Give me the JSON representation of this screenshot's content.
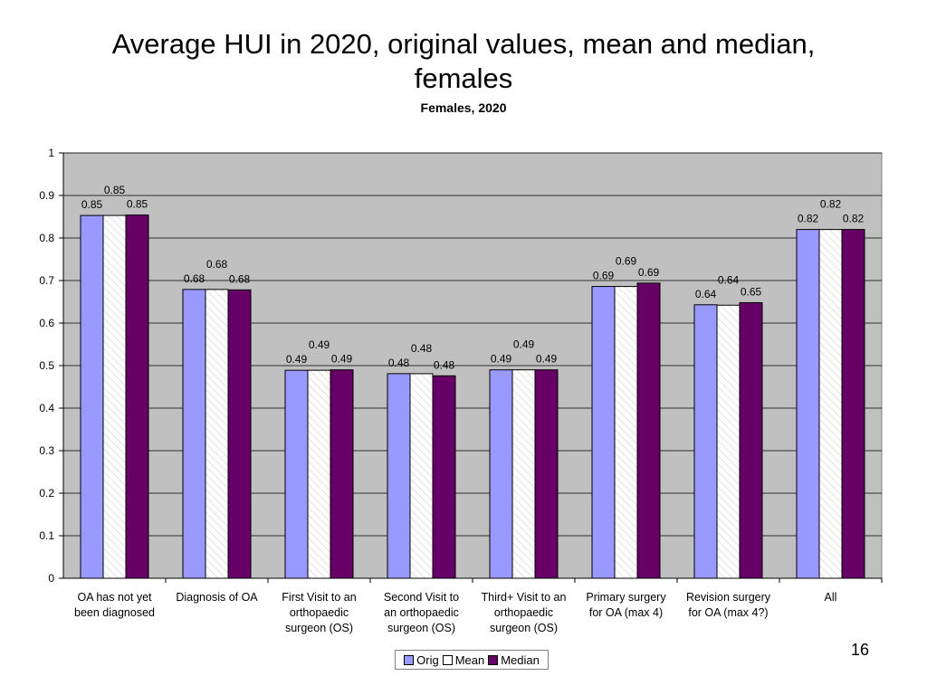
{
  "slide": {
    "title_line1": "Average HUI in 2020, original values, mean and median,",
    "title_line2": "females",
    "page_number": "16"
  },
  "chart_data": {
    "type": "bar",
    "title": "Females, 2020",
    "xlabel": "",
    "ylabel": "",
    "ylim": [
      0,
      1
    ],
    "yticks": [
      0,
      0.1,
      0.2,
      0.3,
      0.4,
      0.5,
      0.6,
      0.7,
      0.8,
      0.9,
      1
    ],
    "ytick_labels": [
      "0",
      "0.1",
      "0.2",
      "0.3",
      "0.4",
      "0.5",
      "0.6",
      "0.7",
      "0.8",
      "0.9",
      "1"
    ],
    "grid": true,
    "plot_background": "#C0C0C0",
    "legend_position": "bottom",
    "categories": [
      [
        "OA has not yet",
        "been diagnosed"
      ],
      [
        "Diagnosis of OA"
      ],
      [
        "First Visit to an",
        "orthopaedic",
        "surgeon (OS)"
      ],
      [
        "Second Visit to",
        "an orthopaedic",
        "surgeon (OS)"
      ],
      [
        "Third+ Visit to an",
        "orthopaedic",
        "surgeon (OS)"
      ],
      [
        "Primary surgery",
        "for OA (max 4)"
      ],
      [
        "Revision surgery",
        "for OA (max 4?)"
      ],
      [
        "All"
      ]
    ],
    "series": [
      {
        "name": "Orig",
        "color": "#9999FF",
        "values": [
          0.853,
          0.679,
          0.489,
          0.481,
          0.49,
          0.686,
          0.643,
          0.82
        ],
        "labels": [
          "0.85",
          "0.68",
          "0.49",
          "0.48",
          "0.49",
          "0.69",
          "0.64",
          "0.82"
        ]
      },
      {
        "name": "Mean",
        "color": "#FFFFFF",
        "values": [
          0.853,
          0.679,
          0.489,
          0.481,
          0.49,
          0.686,
          0.642,
          0.82
        ],
        "labels": [
          "0.85",
          "0.68",
          "0.49",
          "0.48",
          "0.49",
          "0.69",
          "0.64",
          "0.82"
        ]
      },
      {
        "name": "Median",
        "color": "#660066",
        "values": [
          0.854,
          0.678,
          0.49,
          0.476,
          0.49,
          0.694,
          0.648,
          0.82
        ],
        "labels": [
          "0.85",
          "0.68",
          "0.49",
          "0.48",
          "0.49",
          "0.69",
          "0.65",
          "0.82"
        ]
      }
    ]
  }
}
